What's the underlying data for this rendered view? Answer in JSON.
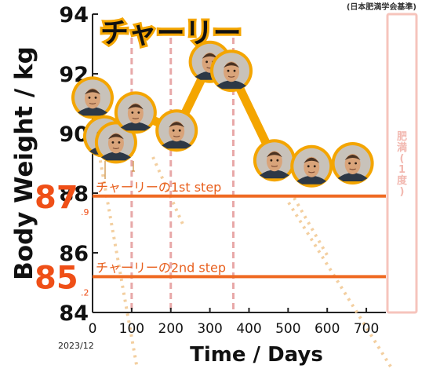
{
  "chart_data": {
    "type": "line",
    "title": "チャーリー",
    "xlabel": "Time / Days",
    "ylabel": "Body Weight / kg",
    "x_start_label": "2023/12",
    "standard_label": "(日本肥満学会基準)",
    "bmi_band_label": [
      "肥",
      "満",
      "(",
      "1",
      "度",
      ")"
    ],
    "xlim": [
      0,
      750
    ],
    "ylim": [
      84,
      94
    ],
    "x_ticks": [
      "0",
      "100",
      "200",
      "300",
      "400",
      "500",
      "600",
      "700"
    ],
    "y_ticks": [
      "84",
      "86",
      "88",
      "90",
      "92",
      "94"
    ],
    "grid": false,
    "series": [
      {
        "x": [
          0,
          30,
          60,
          110,
          215,
          300,
          355,
          465,
          560,
          665
        ],
        "y": [
          91.2,
          89.9,
          89.7,
          90.7,
          90.1,
          92.4,
          92.1,
          89.1,
          88.9,
          89.0
        ]
      }
    ],
    "reference_lines": [
      {
        "y": 87.9,
        "label": "チャーリーの1st step",
        "big": "87",
        "small": ".9"
      },
      {
        "y": 85.2,
        "label": "チャーリーの2nd step",
        "big": "85",
        "small": ".2"
      }
    ],
    "vlines": [
      100,
      200,
      360
    ],
    "colors": {
      "series": "#f4a500",
      "reference": "#ef6a23",
      "vline": "#e8a8a8",
      "band": "#f6c4bc",
      "face": "#d9a47a",
      "shirt": "#2d3846",
      "hair": "#4a3222"
    }
  }
}
